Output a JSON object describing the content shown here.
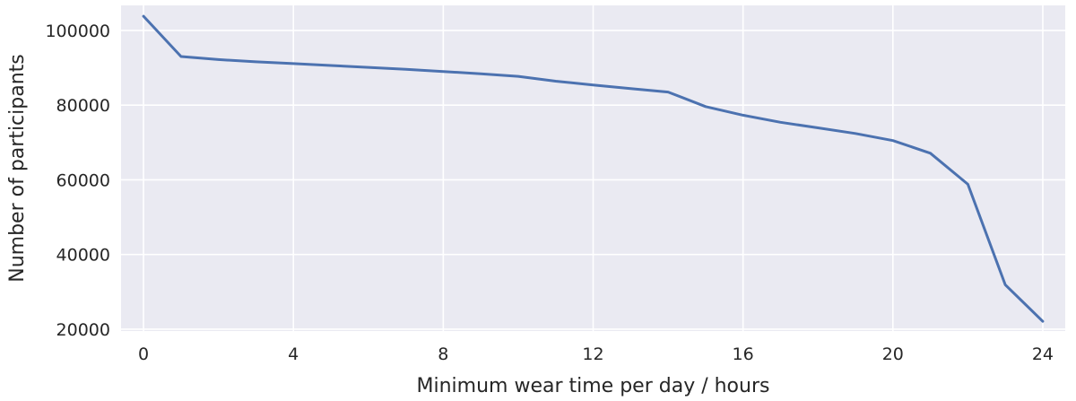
{
  "chart_data": {
    "type": "line",
    "title": "",
    "xlabel": "Minimum wear time per day / hours",
    "ylabel": "Number of participants",
    "xlim": [
      -0.6,
      24.6
    ],
    "ylim": [
      19500,
      106700
    ],
    "x_ticks": [
      0,
      4,
      8,
      12,
      16,
      20,
      24
    ],
    "y_ticks": [
      20000,
      40000,
      60000,
      80000,
      100000
    ],
    "x_tick_labels": [
      "0",
      "4",
      "8",
      "12",
      "16",
      "20",
      "24"
    ],
    "y_tick_labels": [
      "20000",
      "40000",
      "60000",
      "80000",
      "100000"
    ],
    "grid": true,
    "legend": "none",
    "colors": {
      "background": "#eaeaf2",
      "grid": "#ffffff",
      "line": "#4c72b0",
      "text": "#262626"
    },
    "series": [
      {
        "x": [
          0,
          1,
          2,
          3,
          4,
          5,
          6,
          7,
          8,
          9,
          10,
          11,
          12,
          13,
          14,
          15,
          16,
          17,
          18,
          19,
          20,
          21,
          22,
          23,
          24
        ],
        "values": [
          103800,
          93000,
          92200,
          91600,
          91100,
          90600,
          90100,
          89600,
          89000,
          88400,
          87700,
          86400,
          85400,
          84400,
          83500,
          79600,
          77300,
          75400,
          73900,
          72400,
          70500,
          67100,
          58800,
          31900,
          22100
        ]
      }
    ]
  }
}
